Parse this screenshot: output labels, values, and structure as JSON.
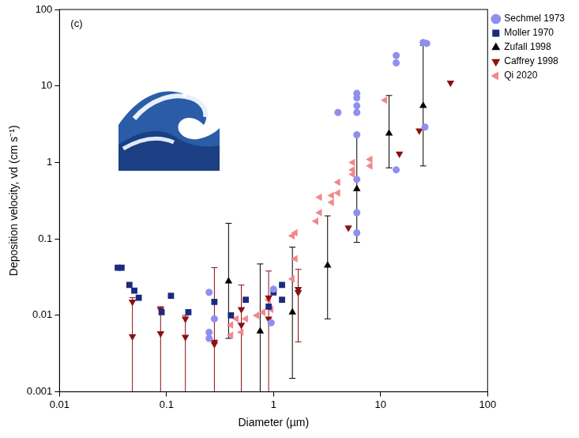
{
  "chart_data": {
    "type": "scatter",
    "x_label": "Diameter (µm)",
    "y_label": "Deposition velocity, vd (cm s⁻¹)",
    "annotations": [
      "(c)"
    ],
    "log": true,
    "grid": false,
    "legend": "right",
    "xlim": [
      0.01,
      100
    ],
    "xticks": [
      0.01,
      0.1,
      1,
      10,
      100
    ],
    "ylim": [
      0.001,
      100
    ],
    "yticks": [
      0.001,
      0.01,
      0.1,
      1,
      10,
      100
    ],
    "series": [
      {
        "name": "Sechmel 1973",
        "color": "#8f8fef",
        "marker": "circle",
        "x": [
          0.25,
          0.25,
          0.25,
          0.28,
          0.95,
          1.0,
          4,
          6,
          6,
          6,
          6,
          6,
          6,
          6,
          6,
          14,
          14,
          14,
          25,
          27,
          26
        ],
        "values": [
          0.02,
          0.006,
          0.005,
          0.009,
          0.008,
          0.022,
          4.5,
          8,
          7,
          5.5,
          4.5,
          2.3,
          0.6,
          0.22,
          0.12,
          25,
          20,
          0.8,
          37,
          36,
          2.9
        ]
      },
      {
        "name": "Moller 1970",
        "color": "#1a2a80",
        "marker": "square",
        "x": [
          0.035,
          0.038,
          0.045,
          0.05,
          0.055,
          0.09,
          0.11,
          0.16,
          0.28,
          0.4,
          0.55,
          0.9,
          1.0,
          1.2,
          1.2
        ],
        "values": [
          0.042,
          0.042,
          0.025,
          0.021,
          0.017,
          0.011,
          0.018,
          0.011,
          0.015,
          0.01,
          0.016,
          0.013,
          0.02,
          0.025,
          0.016
        ]
      },
      {
        "name": "Zufall 1998",
        "color": "#000000",
        "marker": "triangle",
        "x": [
          0.38,
          0.75,
          1.5,
          3.2,
          6,
          12,
          25
        ],
        "values": [
          0.028,
          0.0062,
          0.011,
          0.045,
          0.45,
          2.4,
          5.5
        ],
        "y_low": [
          0.005,
          0.0008,
          0.0015,
          0.009,
          0.09,
          0.85,
          0.9
        ],
        "y_high": [
          0.16,
          0.047,
          0.078,
          0.2,
          2.3,
          7.5,
          34
        ]
      },
      {
        "name": "Caffrey 1998",
        "color": "#8b1010",
        "marker": "triangle_down",
        "x": [
          0.048,
          0.048,
          0.088,
          0.088,
          0.15,
          0.15,
          0.28,
          0.28,
          0.5,
          0.5,
          0.9,
          0.9,
          1.7,
          1.7,
          5,
          15,
          23,
          45
        ],
        "values": [
          0.015,
          0.0053,
          0.012,
          0.0058,
          0.009,
          0.0052,
          0.0045,
          0.0042,
          0.012,
          0.0075,
          0.017,
          0.009,
          0.022,
          0.02,
          0.14,
          1.3,
          2.6,
          11
        ],
        "y_low": [
          null,
          0.0005,
          null,
          0.0005,
          null,
          0.0005,
          null,
          0.0005,
          null,
          0.0005,
          0.0005,
          null,
          null,
          0.0045,
          null,
          null,
          null,
          null
        ],
        "y_high": [
          null,
          0.017,
          null,
          0.013,
          null,
          0.01,
          null,
          0.042,
          null,
          0.025,
          0.038,
          null,
          null,
          0.04,
          null,
          null,
          null,
          null
        ]
      },
      {
        "name": "Qi 2020",
        "color": "#f4878b",
        "marker": "triangle_left",
        "x": [
          0.4,
          0.4,
          0.45,
          0.5,
          0.55,
          0.7,
          0.8,
          0.9,
          0.95,
          1.5,
          1.6,
          1.6,
          1.5,
          2.5,
          2.7,
          2.7,
          3.5,
          3.5,
          4,
          4,
          5.5,
          5.5,
          5.5,
          8,
          8,
          11
        ],
        "values": [
          0.0055,
          0.0075,
          0.009,
          0.006,
          0.009,
          0.01,
          0.011,
          0.016,
          0.012,
          0.03,
          0.055,
          0.12,
          0.11,
          0.17,
          0.35,
          0.22,
          0.37,
          0.3,
          0.55,
          0.4,
          0.7,
          0.8,
          1.0,
          1.1,
          0.9,
          6.5
        ]
      }
    ]
  }
}
